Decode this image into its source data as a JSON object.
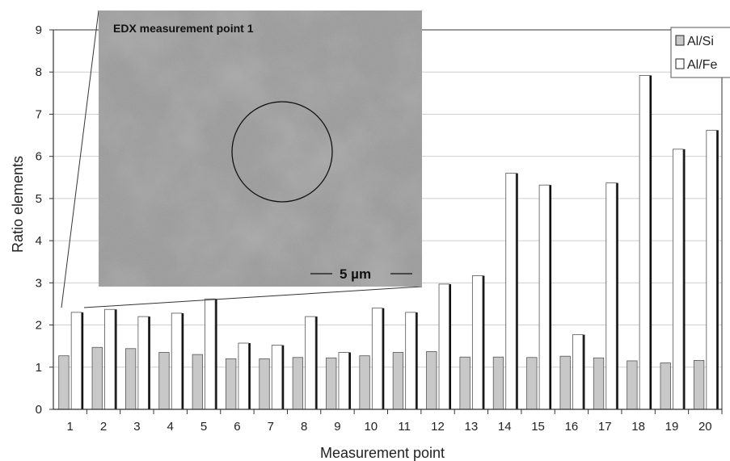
{
  "chart_data": {
    "type": "bar",
    "xlabel": "Measurement point",
    "ylabel": "Ratio elements",
    "ylim": [
      0,
      9
    ],
    "yticks": [
      "0",
      "1",
      "2",
      "3",
      "4",
      "5",
      "6",
      "7",
      "8",
      "9"
    ],
    "categories": [
      "1",
      "2",
      "3",
      "4",
      "5",
      "6",
      "7",
      "8",
      "9",
      "10",
      "11",
      "12",
      "13",
      "14",
      "15",
      "16",
      "17",
      "18",
      "19",
      "20"
    ],
    "series": [
      {
        "name": "Al/Si",
        "color": "#c8c8c8",
        "values": [
          1.27,
          1.47,
          1.44,
          1.35,
          1.3,
          1.2,
          1.2,
          1.23,
          1.22,
          1.27,
          1.35,
          1.37,
          1.24,
          1.24,
          1.23,
          1.26,
          1.22,
          1.15,
          1.1,
          1.16
        ]
      },
      {
        "name": "Al/Fe",
        "color": "#ffffff",
        "values": [
          2.3,
          2.37,
          2.2,
          2.28,
          2.62,
          1.57,
          1.52,
          2.2,
          1.35,
          2.4,
          2.3,
          2.97,
          3.17,
          5.6,
          5.32,
          1.77,
          5.37,
          7.92,
          6.17,
          6.62
        ]
      }
    ],
    "grid": true,
    "legend": "top-right",
    "inset": {
      "title": "EDX measurement point 1",
      "scale_label": "5 µm",
      "points_to": "1"
    }
  }
}
